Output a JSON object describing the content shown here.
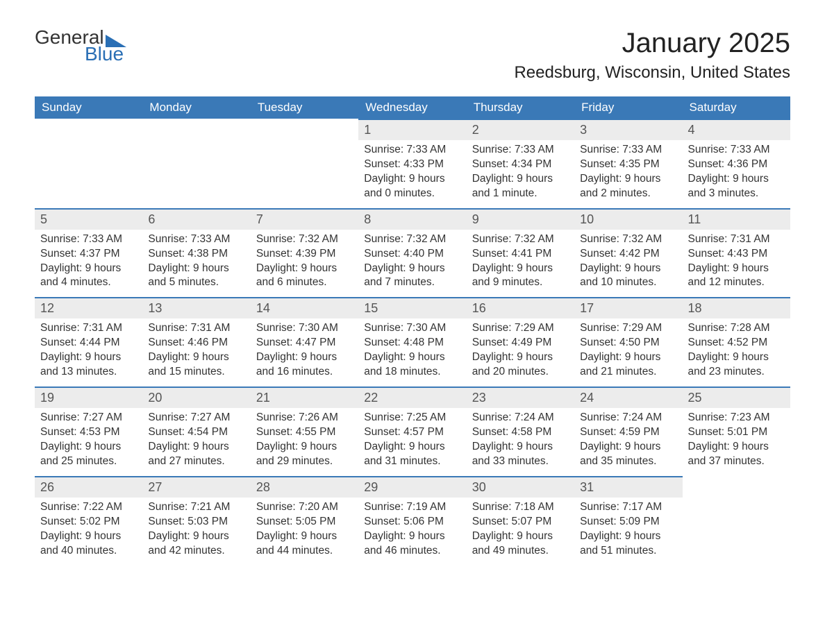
{
  "brand": {
    "word1": "General",
    "word2": "Blue",
    "accent": "#2a6fb5"
  },
  "title": "January 2025",
  "location": "Reedsburg, Wisconsin, United States",
  "weekdays": [
    "Sunday",
    "Monday",
    "Tuesday",
    "Wednesday",
    "Thursday",
    "Friday",
    "Saturday"
  ],
  "colors": {
    "header_bg": "#3a79b7",
    "header_text": "#ffffff",
    "row_divider": "#3a79b7",
    "daynum_bg": "#ececec",
    "body_text": "#333333"
  },
  "typography": {
    "title_fontsize": 40,
    "location_fontsize": 24,
    "weekday_fontsize": 17,
    "daynum_fontsize": 18,
    "body_fontsize": 15.5
  },
  "layout": {
    "columns": 7,
    "rows": 5,
    "start_weekday_index": 3
  },
  "days": [
    {
      "n": 1,
      "sunrise": "7:33 AM",
      "sunset": "4:33 PM",
      "daylight": "9 hours and 0 minutes."
    },
    {
      "n": 2,
      "sunrise": "7:33 AM",
      "sunset": "4:34 PM",
      "daylight": "9 hours and 1 minute."
    },
    {
      "n": 3,
      "sunrise": "7:33 AM",
      "sunset": "4:35 PM",
      "daylight": "9 hours and 2 minutes."
    },
    {
      "n": 4,
      "sunrise": "7:33 AM",
      "sunset": "4:36 PM",
      "daylight": "9 hours and 3 minutes."
    },
    {
      "n": 5,
      "sunrise": "7:33 AM",
      "sunset": "4:37 PM",
      "daylight": "9 hours and 4 minutes."
    },
    {
      "n": 6,
      "sunrise": "7:33 AM",
      "sunset": "4:38 PM",
      "daylight": "9 hours and 5 minutes."
    },
    {
      "n": 7,
      "sunrise": "7:32 AM",
      "sunset": "4:39 PM",
      "daylight": "9 hours and 6 minutes."
    },
    {
      "n": 8,
      "sunrise": "7:32 AM",
      "sunset": "4:40 PM",
      "daylight": "9 hours and 7 minutes."
    },
    {
      "n": 9,
      "sunrise": "7:32 AM",
      "sunset": "4:41 PM",
      "daylight": "9 hours and 9 minutes."
    },
    {
      "n": 10,
      "sunrise": "7:32 AM",
      "sunset": "4:42 PM",
      "daylight": "9 hours and 10 minutes."
    },
    {
      "n": 11,
      "sunrise": "7:31 AM",
      "sunset": "4:43 PM",
      "daylight": "9 hours and 12 minutes."
    },
    {
      "n": 12,
      "sunrise": "7:31 AM",
      "sunset": "4:44 PM",
      "daylight": "9 hours and 13 minutes."
    },
    {
      "n": 13,
      "sunrise": "7:31 AM",
      "sunset": "4:46 PM",
      "daylight": "9 hours and 15 minutes."
    },
    {
      "n": 14,
      "sunrise": "7:30 AM",
      "sunset": "4:47 PM",
      "daylight": "9 hours and 16 minutes."
    },
    {
      "n": 15,
      "sunrise": "7:30 AM",
      "sunset": "4:48 PM",
      "daylight": "9 hours and 18 minutes."
    },
    {
      "n": 16,
      "sunrise": "7:29 AM",
      "sunset": "4:49 PM",
      "daylight": "9 hours and 20 minutes."
    },
    {
      "n": 17,
      "sunrise": "7:29 AM",
      "sunset": "4:50 PM",
      "daylight": "9 hours and 21 minutes."
    },
    {
      "n": 18,
      "sunrise": "7:28 AM",
      "sunset": "4:52 PM",
      "daylight": "9 hours and 23 minutes."
    },
    {
      "n": 19,
      "sunrise": "7:27 AM",
      "sunset": "4:53 PM",
      "daylight": "9 hours and 25 minutes."
    },
    {
      "n": 20,
      "sunrise": "7:27 AM",
      "sunset": "4:54 PM",
      "daylight": "9 hours and 27 minutes."
    },
    {
      "n": 21,
      "sunrise": "7:26 AM",
      "sunset": "4:55 PM",
      "daylight": "9 hours and 29 minutes."
    },
    {
      "n": 22,
      "sunrise": "7:25 AM",
      "sunset": "4:57 PM",
      "daylight": "9 hours and 31 minutes."
    },
    {
      "n": 23,
      "sunrise": "7:24 AM",
      "sunset": "4:58 PM",
      "daylight": "9 hours and 33 minutes."
    },
    {
      "n": 24,
      "sunrise": "7:24 AM",
      "sunset": "4:59 PM",
      "daylight": "9 hours and 35 minutes."
    },
    {
      "n": 25,
      "sunrise": "7:23 AM",
      "sunset": "5:01 PM",
      "daylight": "9 hours and 37 minutes."
    },
    {
      "n": 26,
      "sunrise": "7:22 AM",
      "sunset": "5:02 PM",
      "daylight": "9 hours and 40 minutes."
    },
    {
      "n": 27,
      "sunrise": "7:21 AM",
      "sunset": "5:03 PM",
      "daylight": "9 hours and 42 minutes."
    },
    {
      "n": 28,
      "sunrise": "7:20 AM",
      "sunset": "5:05 PM",
      "daylight": "9 hours and 44 minutes."
    },
    {
      "n": 29,
      "sunrise": "7:19 AM",
      "sunset": "5:06 PM",
      "daylight": "9 hours and 46 minutes."
    },
    {
      "n": 30,
      "sunrise": "7:18 AM",
      "sunset": "5:07 PM",
      "daylight": "9 hours and 49 minutes."
    },
    {
      "n": 31,
      "sunrise": "7:17 AM",
      "sunset": "5:09 PM",
      "daylight": "9 hours and 51 minutes."
    }
  ],
  "labels": {
    "sunrise": "Sunrise:",
    "sunset": "Sunset:",
    "daylight": "Daylight:"
  }
}
